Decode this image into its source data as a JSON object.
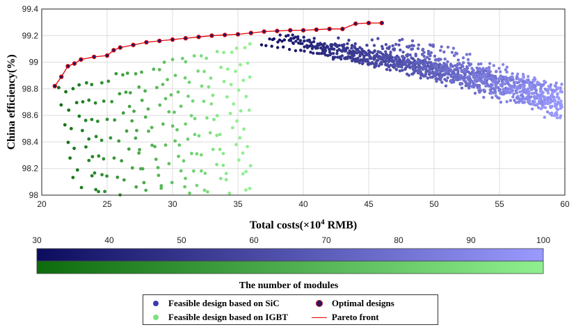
{
  "chart_data": {
    "type": "scatter",
    "title": "",
    "xlabel": "Total costs(×10",
    "xlabel_sup": "4",
    "xlabel_suffix": " RMB)",
    "ylabel": "China efficiency(%)",
    "xlim": [
      20,
      60
    ],
    "ylim": [
      98,
      99.4
    ],
    "xticks": [
      20,
      25,
      30,
      35,
      40,
      45,
      50,
      55,
      60
    ],
    "yticks": [
      98,
      98.2,
      98.4,
      98.6,
      98.8,
      99,
      99.2,
      99.4
    ],
    "ytick_labels": [
      "98",
      "98.2",
      "98.4",
      "98.6",
      "98.8",
      "99",
      "99.2",
      "99.4"
    ],
    "grid": true,
    "colors": {
      "sic_low": "#0c0c5e",
      "sic_high": "#9a9aff",
      "igbt_low": "#0d6b0d",
      "igbt_high": "#90f090",
      "pareto": "#e00000"
    },
    "series": [
      {
        "name": "Feasible design based on SiC",
        "region": {
          "x_start_top": 36.5,
          "x_end": 60,
          "y_top_range": [
            99.12,
            99.3
          ],
          "y_bottom_at_x": [
            [
              49,
              98.65
            ],
            [
              55,
              98.0
            ],
            [
              60,
              98.0
            ]
          ],
          "modules_range": [
            30,
            100
          ]
        }
      },
      {
        "name": "Feasible design based on IGBT",
        "region": {
          "x_start_top": 21,
          "x_end": 36,
          "y_top_range": [
            98.82,
            99.21
          ],
          "y_bottom": 98.0,
          "modules_range": [
            30,
            100
          ]
        }
      },
      {
        "name": "Optimal designs",
        "x": [
          21.0,
          21.5,
          22.0,
          22.5,
          23.0,
          24.0,
          25.0,
          25.5,
          26.0,
          27.0,
          28.0,
          29.0,
          30.0,
          31.0,
          32.0,
          33.0,
          34.0,
          35.0,
          36.0,
          37.0,
          38.0,
          39.0,
          40.0,
          41.0,
          42.0,
          43.0,
          44.0,
          45.0,
          46.0
        ],
        "y": [
          98.82,
          98.89,
          98.97,
          98.99,
          99.02,
          99.04,
          99.05,
          99.09,
          99.11,
          99.13,
          99.15,
          99.16,
          99.17,
          99.18,
          99.19,
          99.2,
          99.205,
          99.21,
          99.22,
          99.23,
          99.235,
          99.24,
          99.24,
          99.245,
          99.25,
          99.25,
          99.29,
          99.295,
          99.295
        ]
      },
      {
        "name": "Pareto front",
        "x": [
          21.0,
          21.5,
          22.0,
          22.5,
          23.0,
          24.0,
          25.0,
          25.5,
          26.0,
          27.0,
          28.0,
          29.0,
          30.0,
          31.0,
          32.0,
          33.0,
          34.0,
          35.0,
          36.0,
          37.0,
          38.0,
          39.0,
          40.0,
          41.0,
          42.0,
          43.0,
          44.0,
          45.0,
          46.0
        ],
        "y": [
          98.82,
          98.89,
          98.97,
          98.99,
          99.02,
          99.04,
          99.05,
          99.09,
          99.11,
          99.13,
          99.15,
          99.16,
          99.17,
          99.18,
          99.19,
          99.2,
          99.205,
          99.21,
          99.22,
          99.23,
          99.235,
          99.24,
          99.24,
          99.245,
          99.25,
          99.25,
          99.29,
          99.295,
          99.295
        ]
      }
    ],
    "colorbar": {
      "title": "The number of modules",
      "range": [
        30,
        100
      ],
      "ticks": [
        30,
        40,
        50,
        60,
        70,
        80,
        90,
        100
      ]
    },
    "legend_position": "bottom-center"
  }
}
